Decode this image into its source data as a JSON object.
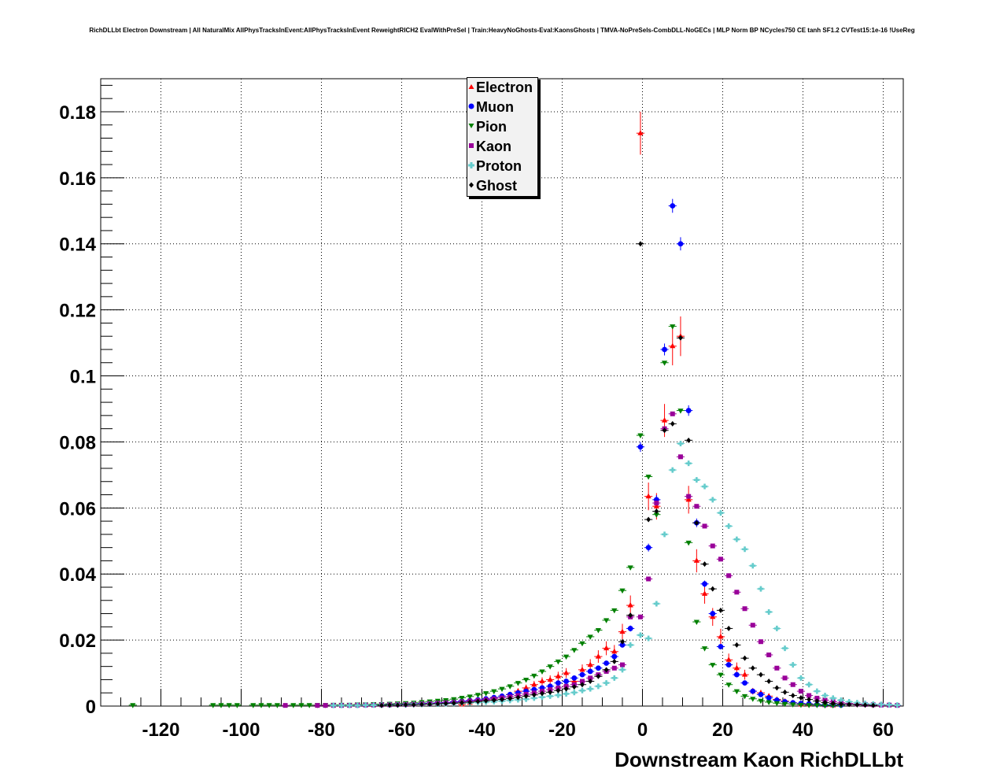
{
  "title": "RichDLLbt Electron Downstream | All NaturalMix AllPhysTracksInEvent:AllPhysTracksInEvent ReweightRICH2 EvalWithPreSel | Train:HeavyNoGhosts-Eval:KaonsGhosts | TMVA-NoPreSels-CombDLL-NoGECs | MLP Norm BP NCycles750 CE tanh SF1.2 CVTest15:1e-16 !UseReg",
  "chart_data": {
    "type": "scatter",
    "title": "RichDLLbt Electron Downstream | All NaturalMix AllPhysTracksInEvent:AllPhysTracksInEvent ReweightRICH2 EvalWithPreSel | Train:HeavyNoGhosts-Eval:KaonsGhosts | TMVA-NoPreSels-CombDLL-NoGECs | MLP Norm BP NCycles750 CE tanh SF1.2 CVTest15:1e-16 !UseReg",
    "xlabel": "Downstream Kaon RichDLLbt",
    "ylabel": "",
    "xlim": [
      -135,
      65
    ],
    "ylim": [
      0,
      0.19
    ],
    "grid": true,
    "legend_position": "top-center",
    "x_ticks": [
      -120,
      -100,
      -80,
      -60,
      -40,
      -20,
      0,
      20,
      40,
      60
    ],
    "x_tick_labels": [
      "-120",
      "-100",
      "-80",
      "-60",
      "-40",
      "-20",
      "0",
      "20",
      "40",
      "60"
    ],
    "y_ticks": [
      0,
      0.02,
      0.04,
      0.06,
      0.08,
      0.1,
      0.12,
      0.14,
      0.16,
      0.18
    ],
    "y_tick_labels": [
      "0",
      "0.02",
      "0.04",
      "0.06",
      "0.08",
      "0.1",
      "0.12",
      "0.14",
      "0.16",
      "0.18"
    ],
    "series": [
      {
        "name": "Electron",
        "color": "#ff0000",
        "marker": "triangle-up",
        "x": [
          -45,
          -43,
          -41,
          -39,
          -37,
          -35,
          -33,
          -31,
          -29,
          -27,
          -25,
          -23,
          -21,
          -19,
          -17,
          -15,
          -13,
          -11,
          -9,
          -7,
          -5,
          -3,
          -0.5,
          1.5,
          3.5,
          5.5,
          7.5,
          9.5,
          11.5,
          13.5,
          15.5,
          17.5,
          19.5,
          21.5,
          23.5,
          25.5,
          27.5,
          29.5,
          31.5,
          33.5,
          35.5,
          37.5,
          39.5,
          41.5,
          43.5,
          45.5,
          47.5
        ],
        "y": [
          0.0005,
          0.001,
          0.0015,
          0.002,
          0.0025,
          0.003,
          0.0035,
          0.0045,
          0.0055,
          0.0065,
          0.0075,
          0.008,
          0.009,
          0.01,
          0.0075,
          0.011,
          0.0125,
          0.015,
          0.0175,
          0.0165,
          0.0225,
          0.0305,
          0.1735,
          0.0635,
          0.0605,
          0.0865,
          0.109,
          0.112,
          0.0625,
          0.044,
          0.034,
          0.027,
          0.021,
          0.014,
          0.0115,
          0.0095,
          0.0045,
          0.004,
          0.003,
          0.002,
          0.0015,
          0.001,
          0.0005,
          0.0005,
          0.0005,
          0.0003,
          0.0002
        ],
        "yerr": [
          0.0003,
          0.0004,
          0.0005,
          0.0006,
          0.0006,
          0.0007,
          0.0008,
          0.0009,
          0.001,
          0.0011,
          0.0012,
          0.0013,
          0.0014,
          0.0015,
          0.0013,
          0.0016,
          0.0017,
          0.0019,
          0.0021,
          0.002,
          0.0024,
          0.003,
          0.0065,
          0.0042,
          0.004,
          0.005,
          0.0058,
          0.006,
          0.0042,
          0.0035,
          0.003,
          0.0027,
          0.0024,
          0.0019,
          0.0017,
          0.0015,
          0.001,
          0.0009,
          0.0008,
          0.0007,
          0.0006,
          0.0005,
          0.0003,
          0.0003,
          0.0003,
          0.0002,
          0.0002
        ]
      },
      {
        "name": "Muon",
        "color": "#0000ff",
        "marker": "circle",
        "x": [
          -71,
          -69,
          -67,
          -65,
          -63,
          -61,
          -59,
          -57,
          -55,
          -53,
          -51,
          -49,
          -47,
          -45,
          -43,
          -41,
          -39,
          -37,
          -35,
          -33,
          -31,
          -29,
          -27,
          -25,
          -23,
          -21,
          -19,
          -17,
          -15,
          -13,
          -11,
          -9,
          -7,
          -5,
          -3,
          -0.5,
          1.5,
          3.5,
          5.5,
          7.5,
          9.5,
          11.5,
          13.5,
          15.5,
          17.5,
          19.5,
          21.5,
          23.5,
          25.5,
          27.5,
          29.5,
          31.5,
          33.5,
          35.5,
          37.5,
          39.5,
          41.5,
          43.5,
          45.5,
          47.5,
          49.5
        ],
        "y": [
          0.0003,
          0.0003,
          0.0004,
          0.0004,
          0.0005,
          0.0005,
          0.0006,
          0.0007,
          0.0008,
          0.0009,
          0.001,
          0.0011,
          0.0013,
          0.0015,
          0.0017,
          0.0019,
          0.0022,
          0.0026,
          0.003,
          0.0035,
          0.004,
          0.0045,
          0.005,
          0.0055,
          0.006,
          0.007,
          0.0075,
          0.0085,
          0.0095,
          0.0105,
          0.0115,
          0.013,
          0.015,
          0.0185,
          0.0235,
          0.0785,
          0.048,
          0.0625,
          0.108,
          0.1515,
          0.14,
          0.0895,
          0.0555,
          0.037,
          0.028,
          0.018,
          0.0125,
          0.0095,
          0.007,
          0.0045,
          0.0035,
          0.0025,
          0.0018,
          0.0013,
          0.001,
          0.0008,
          0.0007,
          0.0005,
          0.0004,
          0.0004,
          0.0003
        ],
        "yerr": [
          0.0002,
          0.0002,
          0.0002,
          0.0002,
          0.0002,
          0.0002,
          0.0002,
          0.0002,
          0.0002,
          0.0002,
          0.0002,
          0.0002,
          0.0002,
          0.0003,
          0.0003,
          0.0003,
          0.0003,
          0.0003,
          0.0004,
          0.0004,
          0.0004,
          0.0004,
          0.0005,
          0.0005,
          0.0005,
          0.0005,
          0.0005,
          0.0006,
          0.0006,
          0.0006,
          0.0006,
          0.0007,
          0.0007,
          0.0008,
          0.0009,
          0.0015,
          0.0012,
          0.0014,
          0.0018,
          0.0021,
          0.002,
          0.0016,
          0.0013,
          0.001,
          0.0009,
          0.0008,
          0.0007,
          0.0006,
          0.0005,
          0.0004,
          0.0004,
          0.0003,
          0.0003,
          0.0002,
          0.0002,
          0.0002,
          0.0002,
          0.0002,
          0.0002,
          0.0002,
          0.0002
        ]
      },
      {
        "name": "Pion",
        "color": "#008000",
        "marker": "triangle-down",
        "x": [
          -127,
          -107,
          -105,
          -103,
          -101,
          -97,
          -95,
          -93,
          -91,
          -87,
          -85,
          -83,
          -81,
          -79,
          -77,
          -75,
          -73,
          -71,
          -69,
          -67,
          -65,
          -63,
          -61,
          -59,
          -57,
          -55,
          -53,
          -51,
          -49,
          -47,
          -45,
          -43,
          -41,
          -39,
          -37,
          -35,
          -33,
          -31,
          -29,
          -27,
          -25,
          -23,
          -21,
          -19,
          -17,
          -15,
          -13,
          -11,
          -9,
          -7,
          -5,
          -3,
          -0.5,
          1.5,
          3.5,
          5.5,
          7.5,
          9.5,
          11.5,
          13.5,
          15.5,
          17.5,
          19.5,
          21.5,
          23.5,
          25.5,
          27.5,
          29.5,
          31.5,
          33.5,
          35.5,
          37.5,
          39.5,
          41.5,
          43.5,
          45.5,
          47.5,
          49.5
        ],
        "y": [
          0.0003,
          0.0003,
          0.0003,
          0.0003,
          0.0003,
          0.0003,
          0.0003,
          0.0003,
          0.0003,
          0.0003,
          0.0003,
          0.0003,
          0.0003,
          0.0003,
          0.0004,
          0.0004,
          0.0004,
          0.0005,
          0.0005,
          0.0006,
          0.0006,
          0.0007,
          0.0008,
          0.0009,
          0.001,
          0.0012,
          0.0014,
          0.0016,
          0.0018,
          0.0021,
          0.0025,
          0.0029,
          0.0034,
          0.0039,
          0.0045,
          0.0052,
          0.006,
          0.007,
          0.008,
          0.0092,
          0.0105,
          0.012,
          0.0135,
          0.015,
          0.017,
          0.019,
          0.021,
          0.023,
          0.026,
          0.029,
          0.035,
          0.042,
          0.082,
          0.0695,
          0.058,
          0.104,
          0.115,
          0.0895,
          0.0495,
          0.0255,
          0.0175,
          0.0125,
          0.0095,
          0.0065,
          0.0045,
          0.003,
          0.0022,
          0.0016,
          0.0012,
          0.0009,
          0.0007,
          0.0005,
          0.0004,
          0.0003,
          0.0003,
          0.0002,
          0.0002,
          0.0002
        ]
      },
      {
        "name": "Kaon",
        "color": "#990099",
        "marker": "square",
        "x": [
          -89,
          -81,
          -79,
          -77,
          -75,
          -73,
          -71,
          -69,
          -67,
          -65,
          -63,
          -61,
          -59,
          -57,
          -55,
          -53,
          -51,
          -49,
          -47,
          -45,
          -43,
          -41,
          -39,
          -37,
          -35,
          -33,
          -31,
          -29,
          -27,
          -25,
          -23,
          -21,
          -19,
          -17,
          -15,
          -13,
          -11,
          -9,
          -7,
          -5,
          -3,
          -0.5,
          1.5,
          3.5,
          5.5,
          7.5,
          9.5,
          11.5,
          13.5,
          15.5,
          17.5,
          19.5,
          21.5,
          23.5,
          25.5,
          27.5,
          29.5,
          31.5,
          33.5,
          35.5,
          37.5,
          39.5,
          41.5,
          43.5,
          45.5,
          47.5,
          49.5,
          51.5,
          53.5,
          55.5,
          57.5,
          59.5,
          61.5,
          63.5
        ],
        "y": [
          0.0002,
          0.0002,
          0.0002,
          0.0002,
          0.0002,
          0.0002,
          0.0003,
          0.0003,
          0.0003,
          0.0004,
          0.0004,
          0.0005,
          0.0005,
          0.0006,
          0.0007,
          0.0008,
          0.0009,
          0.001,
          0.0011,
          0.0013,
          0.0015,
          0.0017,
          0.0019,
          0.0022,
          0.0025,
          0.0028,
          0.0032,
          0.0036,
          0.004,
          0.0045,
          0.005,
          0.0055,
          0.006,
          0.0065,
          0.0075,
          0.0085,
          0.0095,
          0.0105,
          0.0115,
          0.0125,
          0.027,
          0.027,
          0.0385,
          0.0615,
          0.084,
          0.0885,
          0.0755,
          0.0635,
          0.0605,
          0.0545,
          0.0485,
          0.0445,
          0.0395,
          0.0345,
          0.0295,
          0.0245,
          0.0195,
          0.0155,
          0.0115,
          0.0085,
          0.0065,
          0.0045,
          0.0032,
          0.0024,
          0.0018,
          0.0013,
          0.001,
          0.0008,
          0.0006,
          0.0005,
          0.0004,
          0.0003,
          0.0003,
          0.0002
        ]
      },
      {
        "name": "Proton",
        "color": "#66cccc",
        "marker": "cross",
        "x": [
          -77,
          -75,
          -73,
          -71,
          -69,
          -67,
          -65,
          -63,
          -61,
          -59,
          -57,
          -55,
          -53,
          -51,
          -49,
          -47,
          -45,
          -43,
          -41,
          -39,
          -37,
          -35,
          -33,
          -31,
          -29,
          -27,
          -25,
          -23,
          -21,
          -19,
          -17,
          -15,
          -13,
          -11,
          -9,
          -7,
          -5,
          -3,
          -0.5,
          1.5,
          3.5,
          5.5,
          7.5,
          9.5,
          11.5,
          13.5,
          15.5,
          17.5,
          19.5,
          21.5,
          23.5,
          25.5,
          27.5,
          29.5,
          31.5,
          33.5,
          35.5,
          37.5,
          39.5,
          41.5,
          43.5,
          45.5,
          47.5,
          49.5,
          51.5,
          53.5,
          55.5,
          57.5,
          59.5,
          61.5,
          63.5
        ],
        "y": [
          0.0002,
          0.0002,
          0.0002,
          0.0002,
          0.0003,
          0.0003,
          0.0003,
          0.0003,
          0.0004,
          0.0004,
          0.0005,
          0.0005,
          0.0006,
          0.0006,
          0.0007,
          0.0008,
          0.0009,
          0.001,
          0.0011,
          0.0012,
          0.0013,
          0.0015,
          0.0017,
          0.0019,
          0.0021,
          0.0024,
          0.0027,
          0.003,
          0.0033,
          0.0037,
          0.0041,
          0.0047,
          0.0052,
          0.006,
          0.007,
          0.0085,
          0.011,
          0.0185,
          0.0215,
          0.0205,
          0.031,
          0.052,
          0.0715,
          0.0795,
          0.0735,
          0.0685,
          0.0665,
          0.0625,
          0.0585,
          0.0545,
          0.0505,
          0.0475,
          0.0425,
          0.0355,
          0.0285,
          0.0235,
          0.0175,
          0.0125,
          0.0085,
          0.0065,
          0.0045,
          0.0032,
          0.0024,
          0.0018,
          0.0013,
          0.001,
          0.0008,
          0.0006,
          0.0005,
          0.0004,
          0.0003
        ]
      },
      {
        "name": "Ghost",
        "color": "#000000",
        "marker": "diamond",
        "x": [
          -65,
          -63,
          -61,
          -59,
          -57,
          -55,
          -53,
          -51,
          -49,
          -47,
          -45,
          -43,
          -41,
          -39,
          -37,
          -35,
          -33,
          -31,
          -29,
          -27,
          -25,
          -23,
          -21,
          -19,
          -17,
          -15,
          -13,
          -11,
          -9,
          -7,
          -5,
          -3,
          -0.5,
          1.5,
          3.5,
          5.5,
          7.5,
          9.5,
          11.5,
          13.5,
          15.5,
          17.5,
          19.5,
          21.5,
          23.5,
          25.5,
          27.5,
          29.5,
          31.5,
          33.5,
          35.5,
          37.5,
          39.5,
          41.5,
          43.5,
          45.5,
          47.5,
          49.5,
          51.5,
          53.5,
          55.5,
          57.5
        ],
        "y": [
          0.0002,
          0.0003,
          0.0003,
          0.0004,
          0.0004,
          0.0005,
          0.0006,
          0.0007,
          0.0008,
          0.0009,
          0.001,
          0.0012,
          0.0014,
          0.0016,
          0.0018,
          0.002,
          0.0023,
          0.0026,
          0.003,
          0.0034,
          0.0038,
          0.0042,
          0.0047,
          0.0052,
          0.0058,
          0.0065,
          0.0075,
          0.009,
          0.011,
          0.0135,
          0.0195,
          0.0275,
          0.14,
          0.0565,
          0.059,
          0.0835,
          0.0855,
          0.1115,
          0.0805,
          0.0555,
          0.043,
          0.0355,
          0.029,
          0.0235,
          0.0185,
          0.0145,
          0.0115,
          0.0095,
          0.0075,
          0.0055,
          0.0042,
          0.0032,
          0.0025,
          0.002,
          0.0015,
          0.0011,
          0.0008,
          0.0006,
          0.0005,
          0.0004,
          0.0003,
          0.0002
        ]
      }
    ]
  }
}
